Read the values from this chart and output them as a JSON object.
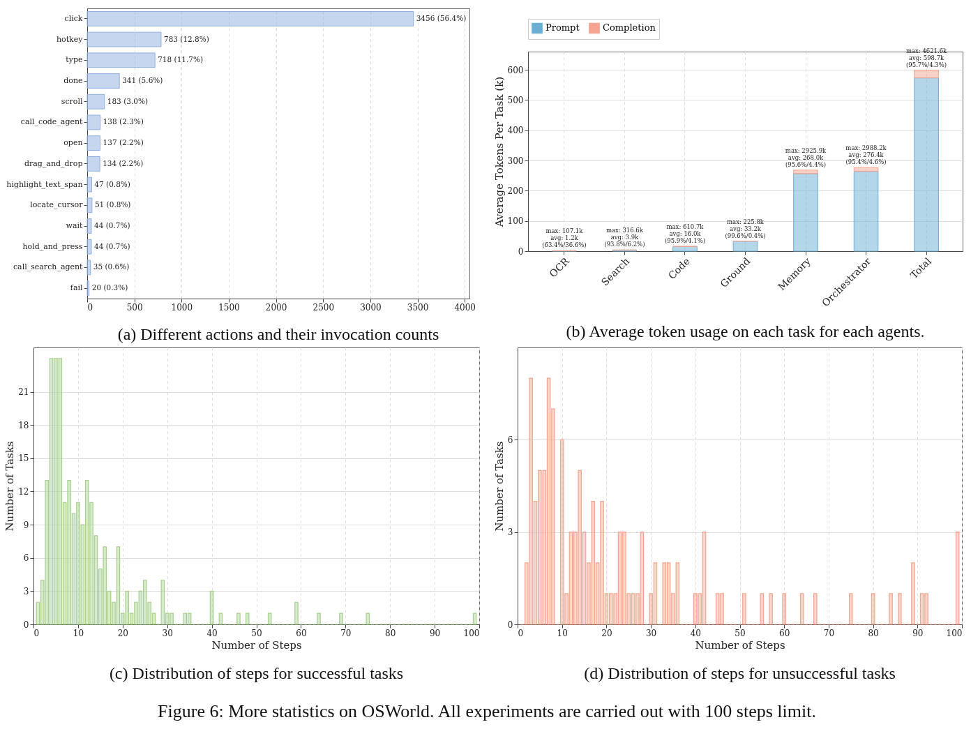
{
  "chart_data": [
    {
      "type": "bar",
      "orientation": "horizontal",
      "title": "(a) Different actions and their invocation counts",
      "categories": [
        "click",
        "hotkey",
        "type",
        "done",
        "scroll",
        "call_code_agent",
        "open",
        "drag_and_drop",
        "highlight_text_span",
        "locate_cursor",
        "wait",
        "hold_and_press",
        "call_search_agent",
        "fail"
      ],
      "values": [
        3456,
        783,
        718,
        341,
        183,
        138,
        137,
        134,
        47,
        51,
        44,
        44,
        35,
        20
      ],
      "value_labels": [
        "3456 (56.4%)",
        "783 (12.8%)",
        "718 (11.7%)",
        "341 (5.6%)",
        "183 (3.0%)",
        "138 (2.3%)",
        "137 (2.2%)",
        "134 (2.2%)",
        "47 (0.8%)",
        "51 (0.8%)",
        "44 (0.7%)",
        "44 (0.7%)",
        "35 (0.6%)",
        "20 (0.3%)"
      ],
      "color": "#8eaee0",
      "xlim": [
        0,
        4050
      ],
      "xticks": [
        0,
        500,
        1000,
        1500,
        2000,
        2500,
        3000,
        3500,
        4000
      ],
      "grid": "x"
    },
    {
      "type": "bar",
      "stacked": true,
      "title": "(b) Average token usage on each task for each agents.",
      "ylabel": "Average Tokens Per Task (k)",
      "categories": [
        "OCR",
        "Search",
        "Code",
        "Ground",
        "Memory",
        "Orchestrator",
        "Total"
      ],
      "series": [
        {
          "name": "Prompt",
          "color": "#6aaed3",
          "values": [
            0.8,
            3.7,
            15.3,
            33.1,
            256.2,
            263.7,
            573.0
          ]
        },
        {
          "name": "Completion",
          "color": "#f5a48f",
          "values": [
            0.4,
            0.2,
            0.7,
            0.1,
            11.8,
            12.7,
            25.7
          ]
        }
      ],
      "totals": [
        "max: 107.1k\navg: 1.2k\n(63.4%/36.6%)",
        "max: 316.6k\navg: 3.9k\n(93.8%/6.2%)",
        "max: 610.7k\navg: 16.0k\n(95.9%/4.1%)",
        "max: 225.8k\navg: 33.2k\n(99.6%/0.4%)",
        "max: 2925.9k\navg: 268.0k\n(95.6%/4.4%)",
        "max: 2988.2k\navg: 276.4k\n(95.4%/4.6%)",
        "max: 4621.6k\navg: 598.7k\n(95.7%/4.3%)"
      ],
      "ylim": [
        0,
        660
      ],
      "yticks": [
        0,
        100,
        200,
        300,
        400,
        500,
        600
      ],
      "grid": true,
      "legend": "top"
    },
    {
      "type": "histogram",
      "title": "(c) Distribution of steps for successful tasks",
      "xlabel": "Number of Steps",
      "ylabel": "Number of Tasks",
      "color": "#a9d18e",
      "bins": [
        0.5,
        1.5,
        2.5,
        3.5,
        4.5,
        5.5,
        6.5,
        7.5,
        8.5,
        9.5,
        10.5,
        11.5,
        12.5,
        13.5,
        14.5,
        15.5,
        16.5,
        17.5,
        18.5,
        19.5,
        20.5,
        21.5,
        22.5,
        23.5,
        24.5,
        25.5,
        26.5,
        27.5,
        28.5,
        29.5,
        30.5,
        31.5,
        32.5,
        33.5,
        34.5,
        35.5,
        36.5,
        37.5,
        38.5,
        39.5,
        40.5,
        41.5,
        42.5,
        43.5,
        44.5,
        45.5,
        46.5,
        47.5,
        48.5,
        49.5,
        50.5,
        51.5,
        52.5,
        53.5,
        54.5,
        55.5,
        56.5,
        57.5,
        58.5,
        59.5,
        60.5,
        61.5,
        62.5,
        63.5,
        64.5,
        65.5,
        66.5,
        67.5,
        68.5,
        69.5,
        70.5,
        71.5,
        72.5,
        73.5,
        74.5,
        75.5,
        76.5,
        77.5,
        78.5,
        79.5,
        80.5,
        81.5,
        82.5,
        83.5,
        84.5,
        85.5,
        86.5,
        87.5,
        88.5,
        89.5,
        90.5,
        91.5,
        92.5,
        93.5,
        94.5,
        95.5,
        96.5,
        97.5,
        98.5,
        99.5
      ],
      "values": [
        2,
        4,
        13,
        24,
        24,
        24,
        11,
        13,
        10,
        11,
        9,
        13,
        11,
        8,
        5,
        7,
        3,
        2,
        7,
        1,
        3,
        1,
        2,
        3,
        4,
        2,
        1,
        0,
        4,
        1,
        1,
        0,
        0,
        1,
        1,
        0,
        0,
        0,
        0,
        3,
        0,
        1,
        0,
        0,
        0,
        1,
        0,
        1,
        0,
        0,
        0,
        0,
        1,
        0,
        0,
        0,
        0,
        0,
        2,
        0,
        0,
        0,
        0,
        1,
        0,
        0,
        0,
        0,
        1,
        0,
        0,
        0,
        0,
        0,
        1,
        0,
        0,
        0,
        0,
        0,
        0,
        0,
        0,
        0,
        0,
        0,
        0,
        0,
        0,
        0,
        0,
        0,
        0,
        0,
        0,
        0,
        0,
        0,
        1
      ],
      "xlim": [
        0,
        100
      ],
      "xticks": [
        0,
        10,
        20,
        30,
        40,
        50,
        60,
        70,
        80,
        90,
        100
      ],
      "ylim": [
        0,
        25
      ],
      "yticks": [
        0,
        3,
        6,
        9,
        12,
        15,
        18,
        21
      ],
      "grid": true
    },
    {
      "type": "histogram",
      "title": "(d) Distribution of steps for unsuccessful tasks",
      "xlabel": "Number of Steps",
      "ylabel": "Number of Tasks",
      "color": "#f4a58f",
      "bins": [
        0.5,
        1.5,
        2.5,
        3.5,
        4.5,
        5.5,
        6.5,
        7.5,
        8.5,
        9.5,
        10.5,
        11.5,
        12.5,
        13.5,
        14.5,
        15.5,
        16.5,
        17.5,
        18.5,
        19.5,
        20.5,
        21.5,
        22.5,
        23.5,
        24.5,
        25.5,
        26.5,
        27.5,
        28.5,
        29.5,
        30.5,
        31.5,
        32.5,
        33.5,
        34.5,
        35.5,
        36.5,
        37.5,
        38.5,
        39.5,
        40.5,
        41.5,
        42.5,
        43.5,
        44.5,
        45.5,
        46.5,
        47.5,
        48.5,
        49.5,
        50.5,
        51.5,
        52.5,
        53.5,
        54.5,
        55.5,
        56.5,
        57.5,
        58.5,
        59.5,
        60.5,
        61.5,
        62.5,
        63.5,
        64.5,
        65.5,
        66.5,
        67.5,
        68.5,
        69.5,
        70.5,
        71.5,
        72.5,
        73.5,
        74.5,
        75.5,
        76.5,
        77.5,
        78.5,
        79.5,
        80.5,
        81.5,
        82.5,
        83.5,
        84.5,
        85.5,
        86.5,
        87.5,
        88.5,
        89.5,
        90.5,
        91.5,
        92.5,
        93.5,
        94.5,
        95.5,
        96.5,
        97.5,
        98.5,
        99.5
      ],
      "values": [
        0,
        2,
        8,
        4,
        5,
        5,
        8,
        7,
        0,
        6,
        1,
        3,
        3,
        5,
        3,
        2,
        4,
        2,
        4,
        1,
        1,
        1,
        3,
        3,
        1,
        1,
        1,
        3,
        0,
        1,
        2,
        0,
        2,
        2,
        1,
        2,
        0,
        0,
        0,
        1,
        1,
        3,
        0,
        0,
        1,
        1,
        0,
        0,
        0,
        0,
        1,
        0,
        0,
        0,
        1,
        0,
        1,
        0,
        0,
        1,
        0,
        0,
        0,
        1,
        0,
        0,
        1,
        0,
        0,
        0,
        0,
        0,
        0,
        0,
        1,
        0,
        0,
        0,
        0,
        1,
        0,
        0,
        0,
        1,
        0,
        1,
        0,
        0,
        2,
        0,
        1,
        1,
        0,
        0,
        0,
        0,
        0,
        0,
        3
      ],
      "xlim": [
        0,
        100
      ],
      "xticks": [
        0,
        10,
        20,
        30,
        40,
        50,
        60,
        70,
        80,
        90,
        100
      ],
      "ylim": [
        0,
        9
      ],
      "yticks": [
        0,
        3,
        6
      ],
      "grid": true
    },
    {
      "type": "other",
      "title": "Figure 6: More statistics on OSWorld. All experiments are carried out with 100 steps limit."
    }
  ]
}
